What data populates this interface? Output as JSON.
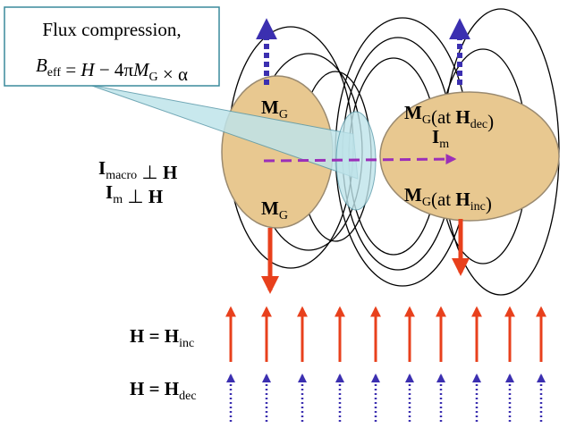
{
  "callout": {
    "line1": "Flux compression,",
    "formula": [
      {
        "t": "B",
        "italic": true
      },
      {
        "t": "eff",
        "sub": true
      },
      {
        "t": " = "
      },
      {
        "t": "H",
        "italic": true
      },
      {
        "t": " − 4π"
      },
      {
        "t": "M",
        "italic": true
      },
      {
        "t": "G",
        "sub": true
      },
      {
        "t": " × α"
      }
    ]
  },
  "labels": [
    {
      "runs": [
        {
          "t": "M",
          "bold": true
        },
        {
          "t": "G",
          "sub": true
        }
      ]
    },
    {
      "runs": [
        {
          "t": "M",
          "bold": true
        },
        {
          "t": "G",
          "sub": true
        }
      ]
    },
    {
      "runs": [
        {
          "t": "M",
          "bold": true
        },
        {
          "t": "G",
          "sub": true
        },
        {
          "t": "(at "
        },
        {
          "t": "H",
          "bold": true
        },
        {
          "t": "dec",
          "sub": true
        },
        {
          "t": ")"
        }
      ]
    },
    {
      "runs": [
        {
          "t": "I",
          "bold": true
        },
        {
          "t": "m",
          "sub": true
        }
      ]
    },
    {
      "runs": [
        {
          "t": "M",
          "bold": true
        },
        {
          "t": "G",
          "sub": true
        },
        {
          "t": "(at "
        },
        {
          "t": "H",
          "bold": true
        },
        {
          "t": "inc",
          "sub": true
        },
        {
          "t": ")"
        }
      ]
    },
    {
      "runs": [
        {
          "t": "I",
          "bold": true
        },
        {
          "t": "macro",
          "sub": true
        },
        {
          "t": " ⊥ "
        },
        {
          "t": "H",
          "bold": true
        }
      ]
    },
    {
      "runs": [
        {
          "t": "I",
          "bold": true
        },
        {
          "t": "m",
          "sub": true
        },
        {
          "t": " ⊥ "
        },
        {
          "t": "H",
          "bold": true
        }
      ]
    },
    {
      "runs": [
        {
          "t": "H = H",
          "bold": true
        },
        {
          "t": "inc",
          "sub": true
        }
      ]
    },
    {
      "runs": [
        {
          "t": "H = H",
          "bold": true
        },
        {
          "t": "dec",
          "sub": true
        }
      ]
    }
  ]
}
